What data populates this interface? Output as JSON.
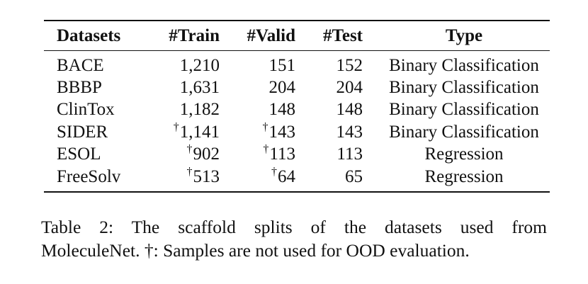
{
  "table": {
    "headers": [
      "Datasets",
      "#Train",
      "#Valid",
      "#Test",
      "Type"
    ],
    "dagger_symbol": "†",
    "rows": [
      {
        "dataset": "BACE",
        "train": "1,210",
        "train_dagger": false,
        "valid": "151",
        "valid_dagger": false,
        "test": "152",
        "type": "Binary Classification"
      },
      {
        "dataset": "BBBP",
        "train": "1,631",
        "train_dagger": false,
        "valid": "204",
        "valid_dagger": false,
        "test": "204",
        "type": "Binary Classification"
      },
      {
        "dataset": "ClinTox",
        "train": "1,182",
        "train_dagger": false,
        "valid": "148",
        "valid_dagger": false,
        "test": "148",
        "type": "Binary Classification"
      },
      {
        "dataset": "SIDER",
        "train": "1,141",
        "train_dagger": true,
        "valid": "143",
        "valid_dagger": true,
        "test": "143",
        "type": "Binary Classification"
      },
      {
        "dataset": "ESOL",
        "train": "902",
        "train_dagger": true,
        "valid": "113",
        "valid_dagger": true,
        "test": "113",
        "type": "Regression"
      },
      {
        "dataset": "FreeSolv",
        "train": "513",
        "train_dagger": true,
        "valid": "64",
        "valid_dagger": true,
        "test": "65",
        "type": "Regression"
      }
    ]
  },
  "caption": {
    "line1": "Table 2: The scaffold splits of the datasets used from",
    "line2": "MoleculeNet. †: Samples are not used for OOD evaluation."
  }
}
